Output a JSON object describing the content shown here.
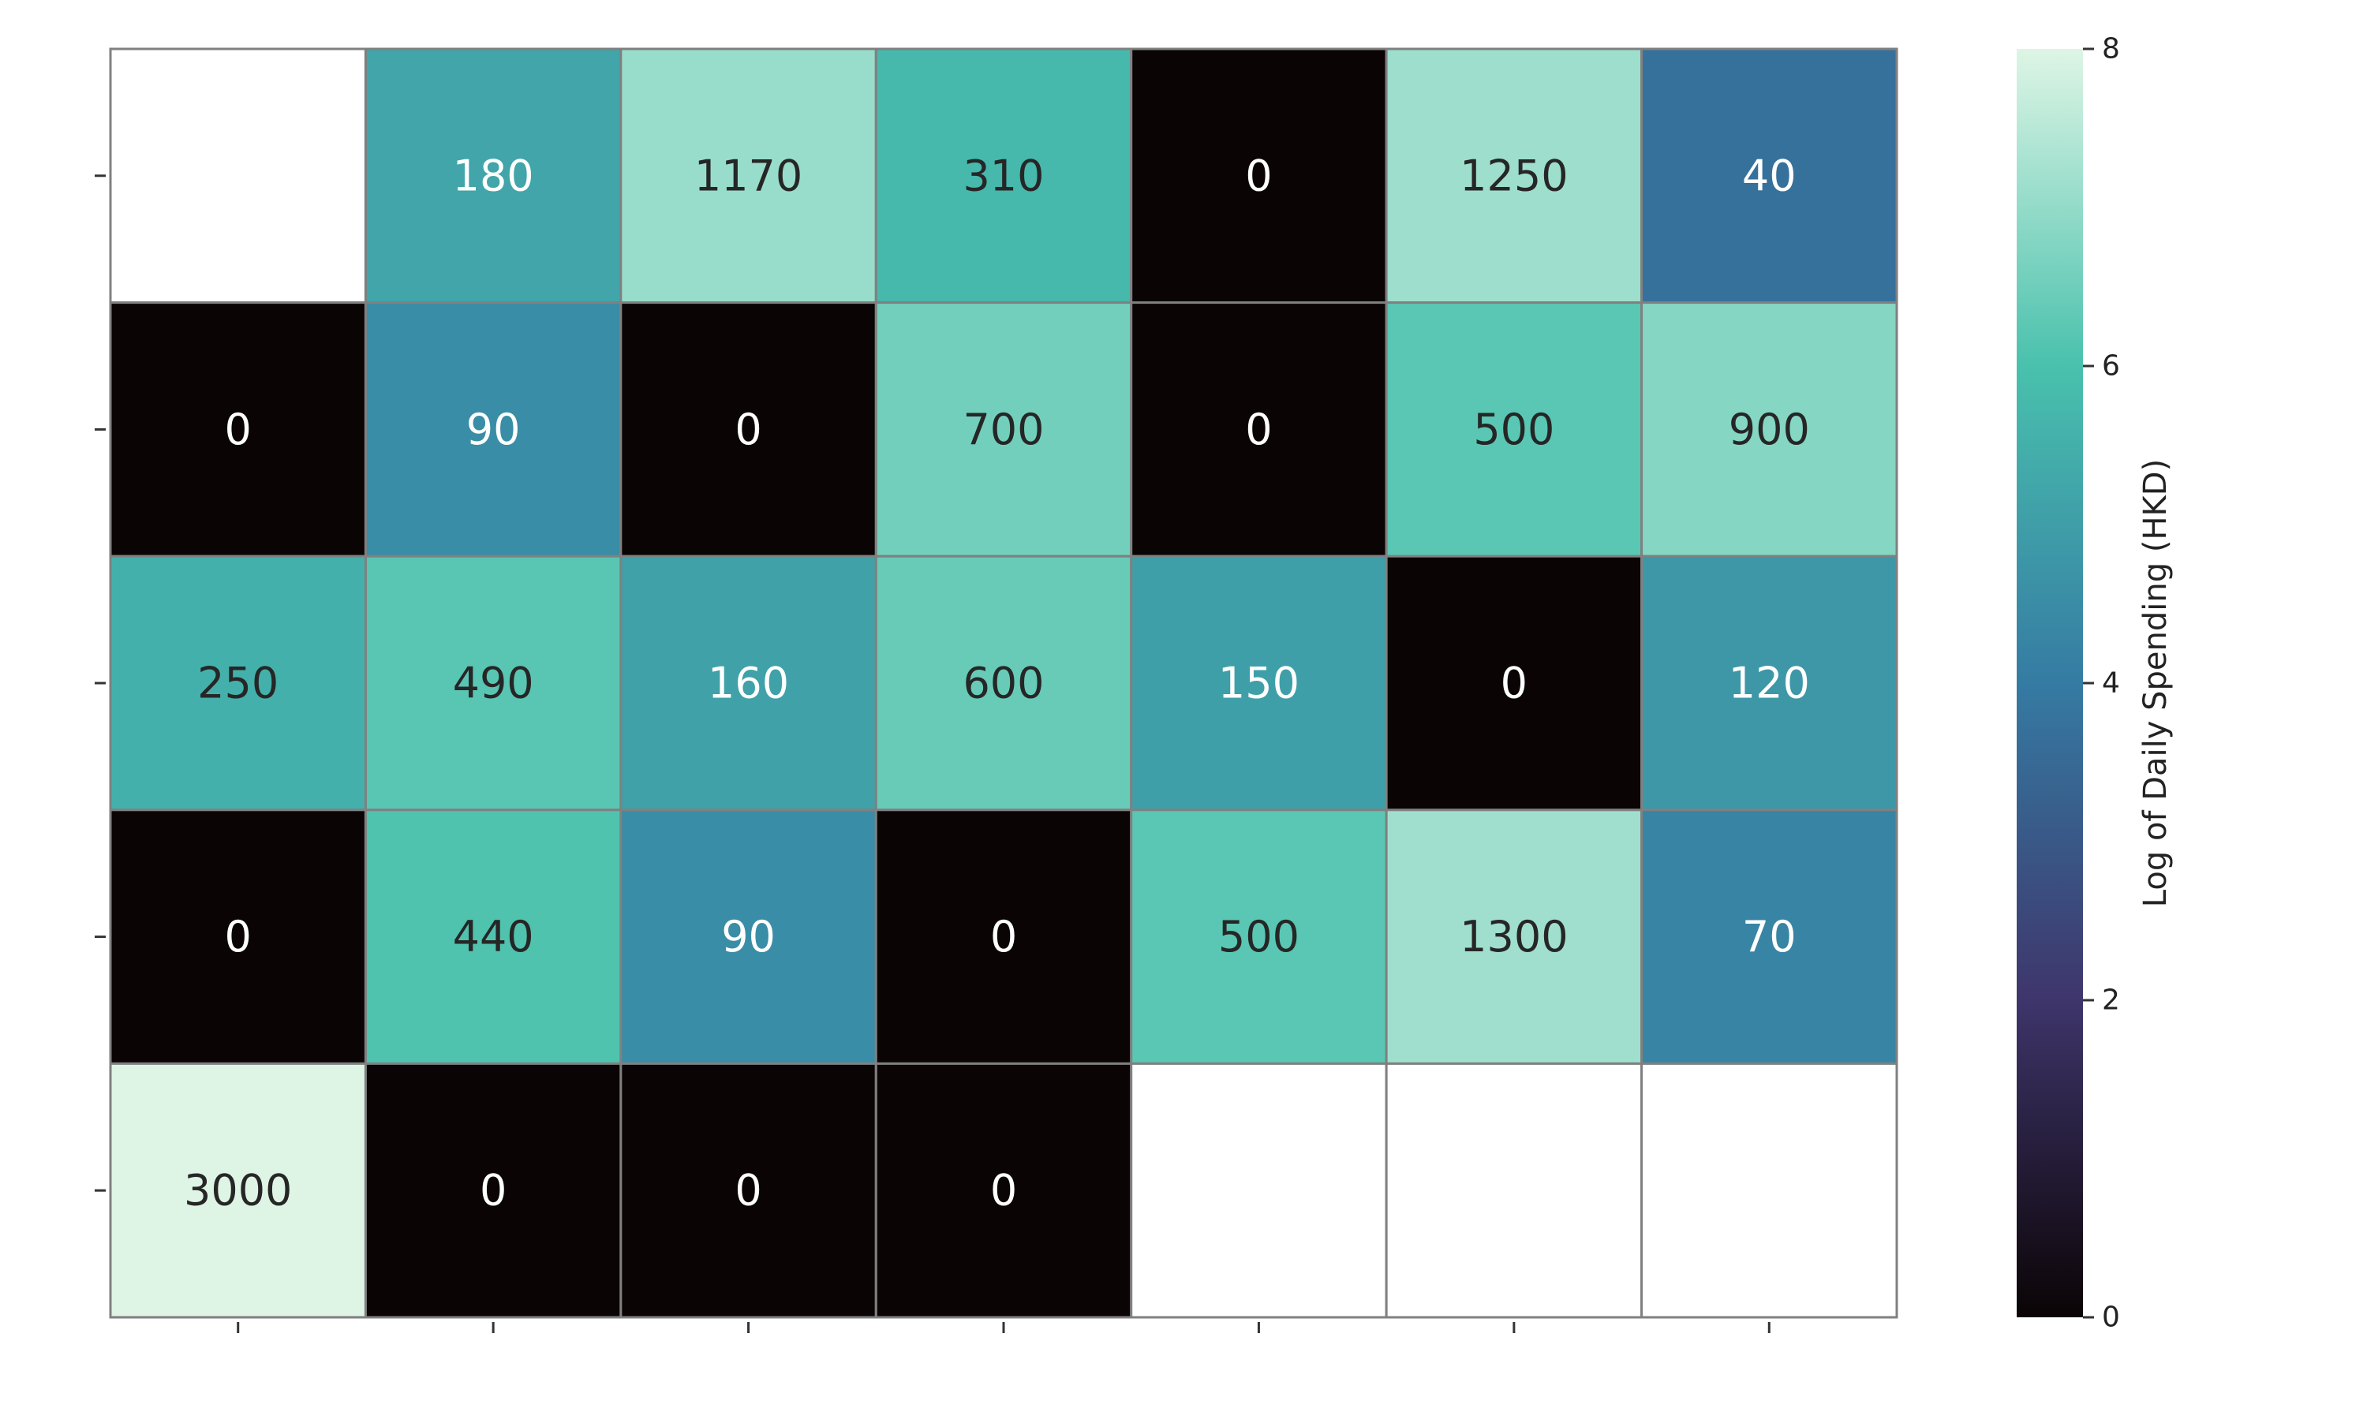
{
  "chart_data": {
    "type": "heatmap",
    "title": "",
    "xlabel": "",
    "ylabel": "",
    "x_tick_labels": [
      "",
      "",
      "",
      "",
      "",
      "",
      ""
    ],
    "y_tick_labels": [
      "",
      "",
      "",
      "",
      ""
    ],
    "grid": true,
    "rows": [
      [
        null,
        180,
        1170,
        310,
        0,
        1250,
        40
      ],
      [
        0,
        90,
        0,
        700,
        0,
        500,
        900
      ],
      [
        250,
        490,
        160,
        600,
        150,
        0,
        120
      ],
      [
        0,
        440,
        90,
        0,
        500,
        1300,
        70
      ],
      [
        3000,
        0,
        0,
        0,
        null,
        null,
        null
      ]
    ],
    "color_transform": "log(1 + value)",
    "colorbar": {
      "label": "Log of Daily Spending (HKD)",
      "range": [
        0,
        8
      ],
      "ticks": [
        "0",
        "2",
        "4",
        "6",
        "8"
      ],
      "colormap": "mako",
      "stops": [
        "#0b0405",
        "#3e356b",
        "#357ba3",
        "#49c1ad",
        "#def5e5"
      ]
    },
    "colors": {
      "cell_border": "#808080",
      "light_text": "#ffffff",
      "dark_text": "#262626",
      "missing": "#ffffff"
    }
  }
}
